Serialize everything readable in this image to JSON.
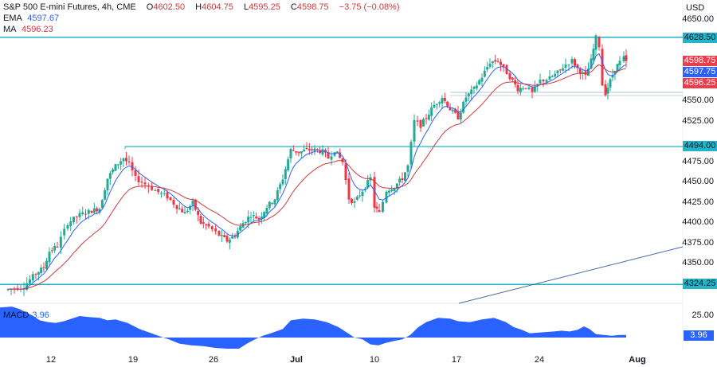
{
  "header": {
    "symbol": "S&P 500 E-mini Futures, 4h, CME",
    "open_label": "O",
    "open": "4602.50",
    "high_label": "H",
    "high": "4604.75",
    "low_label": "L",
    "low": "4595.25",
    "close_label": "C",
    "close": "4598.75",
    "change": "−3.75 (−0.08%)"
  },
  "indicators": {
    "ema_label": "EMA",
    "ema_value": "4597.67",
    "ma_label": "MA",
    "ma_value": "4596.23",
    "macd_label": "MACD",
    "macd_value": "3.96"
  },
  "price_axis": {
    "currency": "USD",
    "ticks": [
      "4650.00",
      "4550.00",
      "4525.00",
      "4475.00",
      "4450.00",
      "4425.00",
      "4400.00",
      "4375.00",
      "4350.00"
    ],
    "tags": {
      "resistance_top": "4628.50",
      "last_close": "4598.75",
      "ema": "4597.75",
      "ma": "4596.25",
      "resistance_mid": "4494.00",
      "support": "4324.25"
    }
  },
  "macd_axis": {
    "tick": "25.00",
    "tag": "3.96"
  },
  "time_axis": {
    "labels": [
      "12",
      "19",
      "26",
      "Jul",
      "10",
      "17",
      "24",
      "Aug"
    ]
  },
  "colors": {
    "up": "#22ab94",
    "down": "#f23645",
    "ema": "#2962ff",
    "ma": "#d0393f",
    "level": "#22b5c9",
    "trendline": "#4a6aa8",
    "macd": "#2962ff"
  },
  "chart_data": {
    "type": "candlestick",
    "title": "S&P 500 E-mini Futures, 4h, CME",
    "xlabel": "",
    "ylabel": "USD",
    "ylim": [
      4305,
      4665
    ],
    "x_ticks": [
      "12",
      "19",
      "26",
      "Jul",
      "10",
      "17",
      "24",
      "Aug"
    ],
    "horizontal_levels": [
      4628.5,
      4494.0,
      4324.25,
      4557,
      4562
    ],
    "trendline": {
      "from": {
        "x_label": "~16 Jul",
        "price": 4300
      },
      "to": {
        "x_label": "~31 Jul",
        "price": 4370
      }
    },
    "series": [
      {
        "name": "EMA",
        "last": 4597.67
      },
      {
        "name": "MA",
        "last": 4596.23
      },
      {
        "name": "MACD",
        "last": 3.96,
        "type": "area"
      }
    ],
    "key_prices": {
      "mid_june_low": 4325,
      "june_18_high": 4494,
      "june_27_low": 4372,
      "july_3_high": 4494,
      "july_10_low": 4410,
      "july_20_high": 4598,
      "july_27_high": 4634,
      "july_27_low": 4555,
      "last_close": 4598.75
    }
  }
}
